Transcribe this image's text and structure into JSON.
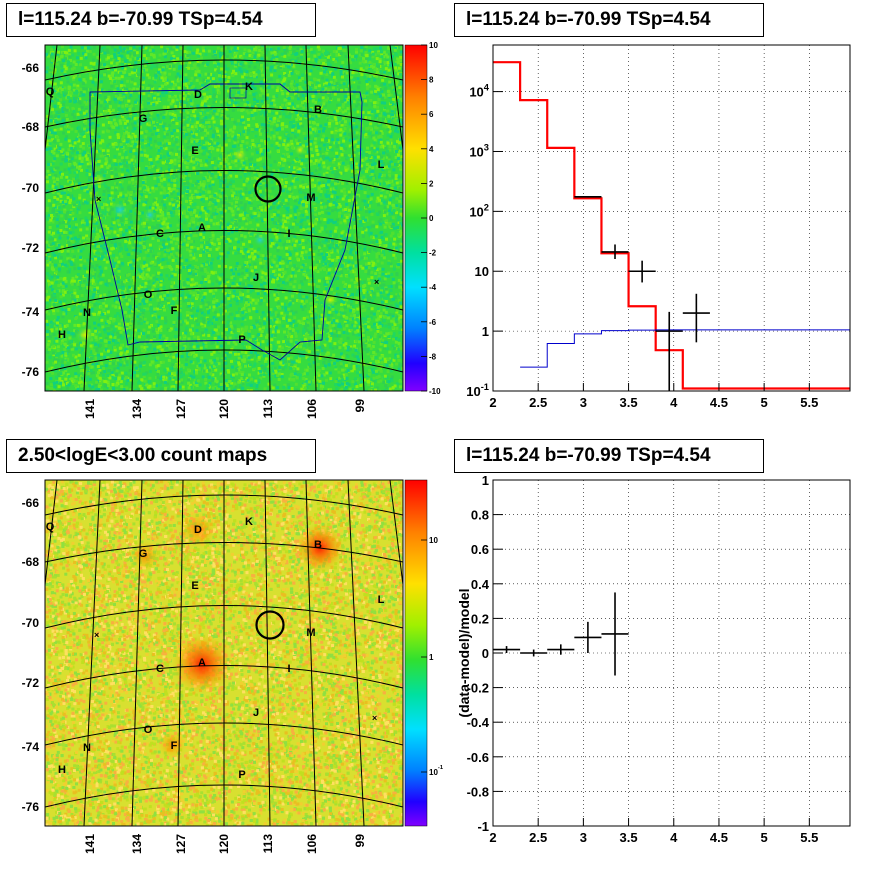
{
  "panels": {
    "tl_title": "l=115.24 b=-70.99 TSp=4.54",
    "tr_title": "l=115.24 b=-70.99 TSp=4.54",
    "bl_title": "2.50<logE<3.00 count maps",
    "br_title": "l=115.24 b=-70.99 TSp=4.54"
  },
  "chart_data": [
    {
      "type": "heatmap",
      "title": "l=115.24 b=-70.99 TSp=4.54",
      "xticks": [
        "141",
        "134",
        "127",
        "120",
        "113",
        "106",
        "99"
      ],
      "yticks": [
        "-66",
        "-68",
        "-70",
        "-72",
        "-74",
        "-76"
      ],
      "colorbar": {
        "ticks": [
          "10",
          "8",
          "6",
          "4",
          "2",
          "0",
          "-2",
          "-4",
          "-6",
          "-8",
          "-10"
        ],
        "range": [
          -10,
          10
        ]
      },
      "source_labels": [
        "Q",
        "D",
        "K",
        "G",
        "B",
        "E",
        "L",
        "M",
        "C",
        "A",
        "I",
        "J",
        "O",
        "F",
        "N",
        "H",
        "P"
      ],
      "colors": {
        "background": "#35dc40",
        "low": "#00cfe0",
        "high": "#f0e000"
      }
    },
    {
      "type": "line",
      "title": "l=115.24 b=-70.99 TSp=4.54",
      "xticks": [
        "2",
        "2.5",
        "3",
        "3.5",
        "4",
        "4.5",
        "5",
        "5.5"
      ],
      "yticks": [
        "10^-1",
        "1",
        "10",
        "10^2",
        "10^3",
        "10^4"
      ],
      "xlim": [
        2,
        5.95
      ],
      "ylim": [
        0.1,
        60000
      ],
      "log_y": true,
      "grid": true,
      "series": [
        {
          "color": "#ff0000",
          "edges": [
            2.0,
            2.3,
            2.6,
            2.9,
            3.2,
            3.5,
            3.8,
            4.1,
            4.4,
            5.95
          ],
          "values": [
            31000,
            7200,
            1150,
            165,
            20,
            2.6,
            0.48,
            0.11,
            0.11
          ]
        },
        {
          "color": "#0000cc",
          "edges": [
            2.3,
            2.6,
            2.9,
            3.2,
            3.5,
            3.8,
            4.1,
            5.95
          ],
          "values": [
            0.25,
            0.62,
            0.9,
            1.02,
            1.04,
            1.05,
            1.05
          ]
        },
        {
          "color": "#000000",
          "points": [
            {
              "x": 3.05,
              "xerr": 0.15,
              "y": 175,
              "ylo": 170,
              "yhi": 180
            },
            {
              "x": 3.35,
              "xerr": 0.15,
              "y": 21,
              "ylo": 16,
              "yhi": 28
            },
            {
              "x": 3.65,
              "xerr": 0.15,
              "y": 10,
              "ylo": 6.5,
              "yhi": 15
            },
            {
              "x": 3.95,
              "xerr": 0.15,
              "y": 1.0,
              "ylo": 0.1,
              "yhi": 2.1
            },
            {
              "x": 4.25,
              "xerr": 0.15,
              "y": 2.0,
              "ylo": 0.65,
              "yhi": 4.2
            }
          ]
        }
      ]
    },
    {
      "type": "heatmap",
      "title": "2.50<logE<3.00 count maps",
      "xticks": [
        "141",
        "134",
        "127",
        "120",
        "113",
        "106",
        "99"
      ],
      "yticks": [
        "-66",
        "-68",
        "-70",
        "-72",
        "-74",
        "-76"
      ],
      "colorbar": {
        "ticks": [
          "10",
          "1",
          "10^-1"
        ],
        "log": true
      },
      "source_labels": [
        "Q",
        "D",
        "K",
        "G",
        "B",
        "E",
        "L",
        "M",
        "C",
        "A",
        "I",
        "J",
        "O",
        "F",
        "N",
        "H",
        "P"
      ],
      "colors": {
        "background": "#d6e028",
        "hot": "#ff3000",
        "cold": "#40e040"
      }
    },
    {
      "type": "scatter",
      "title": "l=115.24 b=-70.99 TSp=4.54",
      "ylabel": "(data-model)/model",
      "xticks": [
        "2",
        "2.5",
        "3",
        "3.5",
        "4",
        "4.5",
        "5",
        "5.5"
      ],
      "yticks": [
        "1",
        "0.8",
        "0.6",
        "0.4",
        "0.2",
        "0",
        "-0.2",
        "-0.4",
        "-0.6",
        "-0.8",
        "-1"
      ],
      "xlim": [
        2,
        5.95
      ],
      "ylim": [
        -1,
        1
      ],
      "grid": true,
      "points": [
        {
          "x": 2.15,
          "xerr": 0.15,
          "y": 0.02,
          "ylo": 0.0,
          "yhi": 0.04
        },
        {
          "x": 2.45,
          "xerr": 0.15,
          "y": 0.0,
          "ylo": -0.02,
          "yhi": 0.02
        },
        {
          "x": 2.75,
          "xerr": 0.15,
          "y": 0.02,
          "ylo": -0.01,
          "yhi": 0.05
        },
        {
          "x": 3.05,
          "xerr": 0.15,
          "y": 0.09,
          "ylo": 0.0,
          "yhi": 0.18
        },
        {
          "x": 3.35,
          "xerr": 0.15,
          "y": 0.11,
          "ylo": -0.13,
          "yhi": 0.35
        }
      ]
    }
  ]
}
